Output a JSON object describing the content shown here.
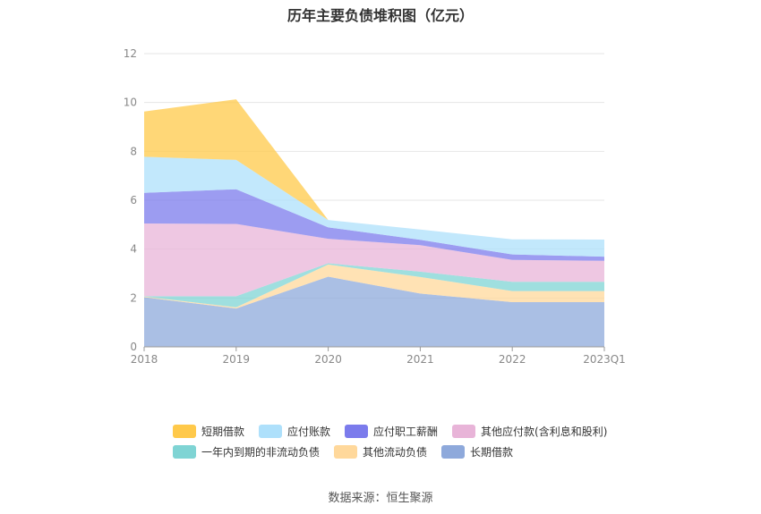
{
  "title": "历年主要负债堆积图（亿元）",
  "source": "数据来源：恒生聚源",
  "chart_data": {
    "type": "area",
    "stacked": true,
    "x": [
      "2018",
      "2019",
      "2020",
      "2021",
      "2022",
      "2023Q1"
    ],
    "y_ticks": [
      "0",
      "2",
      "4",
      "6",
      "8",
      "10",
      "12"
    ],
    "ylim": [
      0,
      12
    ],
    "grid": true,
    "legend_position": "bottom",
    "series": [
      {
        "name": "长期借款",
        "color": "#8ea9db",
        "values": [
          2.03,
          1.57,
          2.87,
          2.18,
          1.83,
          1.83
        ]
      },
      {
        "name": "其他流动负债",
        "color": "#ffd89b",
        "values": [
          0.03,
          0.05,
          0.5,
          0.68,
          0.45,
          0.45
        ]
      },
      {
        "name": "一年内到期的非流动负债",
        "color": "#7fd4d4",
        "values": [
          0.01,
          0.45,
          0.05,
          0.22,
          0.38,
          0.38
        ]
      },
      {
        "name": "其他应付款(含利息和股利)",
        "color": "#e8b4d8",
        "values": [
          2.98,
          2.96,
          1.0,
          1.08,
          0.9,
          0.86
        ]
      },
      {
        "name": "应付职工薪酬",
        "color": "#7b7bec",
        "values": [
          1.25,
          1.42,
          0.47,
          0.22,
          0.22,
          0.17
        ]
      },
      {
        "name": "应付账款",
        "color": "#aee0fb",
        "values": [
          1.48,
          1.2,
          0.3,
          0.42,
          0.62,
          0.7
        ]
      },
      {
        "name": "短期借款",
        "color": "#ffc94a",
        "values": [
          1.85,
          2.48,
          0.0,
          0.0,
          0.0,
          0.0
        ]
      }
    ]
  },
  "legend": {
    "row1": [
      {
        "name": "短期借款",
        "color": "#ffc94a"
      },
      {
        "name": "应付账款",
        "color": "#aee0fb"
      },
      {
        "name": "应付职工薪酬",
        "color": "#7b7bec"
      },
      {
        "name": "其他应付款(含利息和股利)",
        "color": "#e8b4d8"
      }
    ],
    "row2": [
      {
        "name": "一年内到期的非流动负债",
        "color": "#7fd4d4"
      },
      {
        "name": "其他流动负债",
        "color": "#ffd89b"
      },
      {
        "name": "长期借款",
        "color": "#8ea9db"
      }
    ]
  }
}
